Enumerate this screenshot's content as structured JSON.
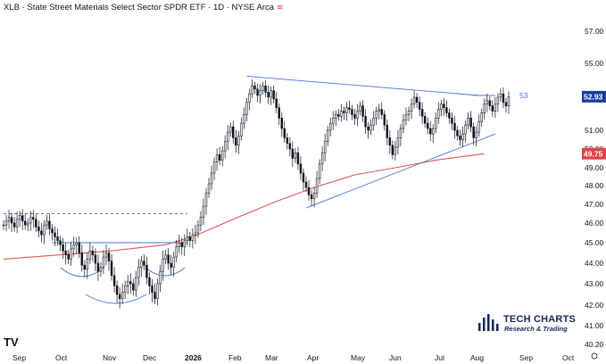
{
  "header": {
    "title": "XLB · State Street Materials Select Sector SPDR ETF · 1D · NYSE Arca",
    "wave_icon": "wave-icon"
  },
  "brand": {
    "name": "TECH CHARTS",
    "tagline": "Research & Trading"
  },
  "tv_logo": "TV",
  "chart_data": {
    "type": "candlestick",
    "title": "",
    "ylim": [
      40.0,
      58.0
    ],
    "y_ticks": [
      "57.00",
      "55.00",
      "53.00",
      "51.00",
      "50.00",
      "49.00",
      "48.00",
      "47.00",
      "46.00",
      "45.00",
      "44.00",
      "43.00",
      "42.00",
      "41.00",
      "40.20"
    ],
    "x_ticks": [
      "Sep",
      "Oct",
      "Nov",
      "Dec",
      "2026",
      "Feb",
      "Mar",
      "Apr",
      "May",
      "Jun",
      "Jul",
      "Aug",
      "Sep",
      "Oct"
    ],
    "x_ticks_bold": [
      "2026"
    ],
    "close_series": [
      45.9,
      46.1,
      46.3,
      46.0,
      45.8,
      46.2,
      46.4,
      46.1,
      45.9,
      46.0,
      46.3,
      46.2,
      45.8,
      45.6,
      45.4,
      45.9,
      46.1,
      45.7,
      45.5,
      45.3,
      45.1,
      44.9,
      44.6,
      44.4,
      44.2,
      44.7,
      44.9,
      45.0,
      44.5,
      43.9,
      43.7,
      44.2,
      44.6,
      44.4,
      44.0,
      43.6,
      43.8,
      44.3,
      44.5,
      44.1,
      43.4,
      42.9,
      42.5,
      42.3,
      42.6,
      42.9,
      43.1,
      43.0,
      42.7,
      43.3,
      43.8,
      44.1,
      43.9,
      43.3,
      42.9,
      42.6,
      42.3,
      43.0,
      43.6,
      44.2,
      44.4,
      44.0,
      43.8,
      44.3,
      44.8,
      45.0,
      44.8,
      45.1,
      45.3,
      45.1,
      45.4,
      45.5,
      45.9,
      46.3,
      46.9,
      47.6,
      48.1,
      48.7,
      49.3,
      49.7,
      49.4,
      49.9,
      50.4,
      50.9,
      51.2,
      50.6,
      50.2,
      50.7,
      51.4,
      51.9,
      52.6,
      53.1,
      53.6,
      53.4,
      53.0,
      53.3,
      53.6,
      53.2,
      52.9,
      53.3,
      52.8,
      52.3,
      51.7,
      51.1,
      50.6,
      50.3,
      50.0,
      49.5,
      49.8,
      49.2,
      48.7,
      48.2,
      47.9,
      47.5,
      47.3,
      47.6,
      48.4,
      49.2,
      49.8,
      50.4,
      51.0,
      51.4,
      51.7,
      51.9,
      51.8,
      52.1,
      52.0,
      52.3,
      52.2,
      51.9,
      51.7,
      52.1,
      52.4,
      51.8,
      51.2,
      51.0,
      51.3,
      51.7,
      52.1,
      52.2,
      51.9,
      51.3,
      50.6,
      50.2,
      49.7,
      50.1,
      50.6,
      51.1,
      51.6,
      51.9,
      52.1,
      52.5,
      52.9,
      52.6,
      52.2,
      51.8,
      51.4,
      51.1,
      50.8,
      51.1,
      51.7,
      52.2,
      52.5,
      52.3,
      52.0,
      51.7,
      51.4,
      51.0,
      50.7,
      50.5,
      50.8,
      51.3,
      51.7,
      51.2,
      50.6,
      50.9,
      51.5,
      52.0,
      52.5,
      52.7,
      52.4,
      52.1,
      52.5,
      52.9,
      53.1,
      52.6,
      52.4,
      52.93
    ],
    "series": [
      {
        "name": "",
        "type": "line",
        "color": "#e05a5a",
        "x": [
          0,
          20,
          40,
          60,
          70,
          85,
          100,
          115,
          130,
          145,
          160,
          170,
          178
        ],
        "values": [
          44.2,
          44.4,
          44.6,
          44.9,
          45.3,
          46.2,
          47.1,
          47.9,
          48.6,
          49.0,
          49.4,
          49.6,
          49.75
        ]
      }
    ],
    "trendlines": [
      {
        "color": "#4a78d8",
        "x": [
          90,
          176
        ],
        "values": [
          54.2,
          53.0
        ],
        "style": "solid"
      },
      {
        "color": "#4a78d8",
        "x": [
          112,
          182
        ],
        "values": [
          46.8,
          50.8
        ],
        "style": "solid"
      },
      {
        "color": "#4a78d8",
        "x": [
          0,
          68
        ],
        "values": [
          46.5,
          46.5
        ],
        "style": "dashed"
      },
      {
        "color": "#4a78d8",
        "x": [
          18,
          68
        ],
        "values": [
          45.0,
          45.0
        ],
        "style": "solid"
      },
      {
        "color": "#4a78d8",
        "x": [
          174,
          182
        ],
        "values": [
          53.0,
          53.0
        ],
        "style": "solid"
      }
    ],
    "level_label": "53",
    "price_badges": [
      {
        "label": "52.93",
        "value": 52.93,
        "color": "#1e3f9a"
      },
      {
        "label": "49.75",
        "value": 49.75,
        "color": "#e0454a"
      }
    ],
    "colors": {
      "up": "#ffffff",
      "down": "#131722",
      "outline": "#131722",
      "axis_text": "#131722"
    }
  }
}
